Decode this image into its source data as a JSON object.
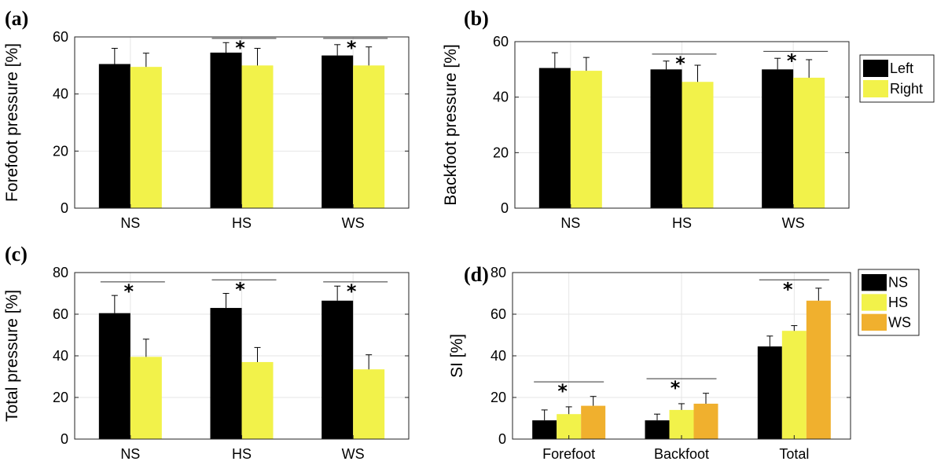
{
  "colors": {
    "black": "#000000",
    "yellow": "#f2f24a",
    "orange": "#f0b02e",
    "grid": "#e6e6e6",
    "axis": "#222222"
  },
  "chart_data": [
    {
      "id": "a",
      "panel_label": "(a)",
      "type": "bar",
      "ylabel": "Forefoot pressure [%]",
      "ylim": [
        0,
        60
      ],
      "yticks": [
        0,
        20,
        40,
        60
      ],
      "categories": [
        "NS",
        "HS",
        "WS"
      ],
      "series": [
        {
          "name": "Left",
          "color": "black",
          "values": [
            50.5,
            54.5,
            53.5
          ],
          "errors": [
            5.5,
            3.5,
            3.8
          ]
        },
        {
          "name": "Right",
          "color": "yellow",
          "values": [
            49.5,
            50.0,
            50.0
          ],
          "errors": [
            4.8,
            6.0,
            6.5
          ]
        }
      ],
      "significance": [
        {
          "category": "HS",
          "label": "*",
          "level": 59.5
        },
        {
          "category": "WS",
          "label": "*",
          "level": 59.5
        }
      ],
      "grid": true,
      "legend": null
    },
    {
      "id": "b",
      "panel_label": "(b)",
      "type": "bar",
      "ylabel": "Backfoot  pressure [%]",
      "ylim": [
        0,
        60
      ],
      "yticks": [
        0,
        20,
        40,
        60
      ],
      "categories": [
        "NS",
        "HS",
        "WS"
      ],
      "series": [
        {
          "name": "Left",
          "color": "black",
          "values": [
            50.5,
            50.0,
            50.0
          ],
          "errors": [
            5.5,
            3.0,
            4.0
          ]
        },
        {
          "name": "Right",
          "color": "yellow",
          "values": [
            49.5,
            45.5,
            47.0
          ],
          "errors": [
            4.8,
            6.0,
            6.5
          ]
        }
      ],
      "significance": [
        {
          "category": "HS",
          "label": "*",
          "level": 55.5
        },
        {
          "category": "WS",
          "label": "*",
          "level": 56.5
        }
      ],
      "grid": true,
      "legend": {
        "position": "outside-right",
        "entries": [
          "Left",
          "Right"
        ]
      }
    },
    {
      "id": "c",
      "panel_label": "(c)",
      "type": "bar",
      "ylabel": "Total pressure [%]",
      "ylim": [
        0,
        80
      ],
      "yticks": [
        0,
        20,
        40,
        60,
        80
      ],
      "categories": [
        "NS",
        "HS",
        "WS"
      ],
      "series": [
        {
          "name": "Left",
          "color": "black",
          "values": [
            60.5,
            63.0,
            66.5
          ],
          "errors": [
            8.5,
            7.0,
            7.0
          ]
        },
        {
          "name": "Right",
          "color": "yellow",
          "values": [
            39.5,
            37.0,
            33.5
          ],
          "errors": [
            8.5,
            7.0,
            7.0
          ]
        }
      ],
      "significance": [
        {
          "category": "NS",
          "label": "*",
          "level": 75.5
        },
        {
          "category": "HS",
          "label": "*",
          "level": 76.5
        },
        {
          "category": "WS",
          "label": "*",
          "level": 75.5
        }
      ],
      "grid": true,
      "legend": null
    },
    {
      "id": "d",
      "panel_label": "(d)",
      "type": "bar",
      "ylabel": "SI [%]",
      "ylim": [
        0,
        80
      ],
      "yticks": [
        0,
        20,
        40,
        60,
        80
      ],
      "categories": [
        "Forefoot",
        "Backfoot",
        "Total"
      ],
      "series": [
        {
          "name": "NS",
          "color": "black",
          "values": [
            9.0,
            9.0,
            44.5
          ],
          "errors": [
            5.0,
            3.0,
            5.0
          ]
        },
        {
          "name": "HS",
          "color": "yellow",
          "values": [
            12.0,
            14.0,
            52.0
          ],
          "errors": [
            3.5,
            3.0,
            2.5
          ]
        },
        {
          "name": "WS",
          "color": "orange",
          "values": [
            16.0,
            17.0,
            66.5
          ],
          "errors": [
            4.5,
            5.0,
            6.0
          ]
        }
      ],
      "significance": [
        {
          "category": "Forefoot",
          "label": "*",
          "level": 27.5
        },
        {
          "category": "Backfoot",
          "label": "*",
          "level": 29.0
        },
        {
          "category": "Total",
          "label": "*",
          "level": 76.5
        }
      ],
      "grid": true,
      "legend": {
        "position": "outside-right",
        "entries": [
          "NS",
          "HS",
          "WS"
        ]
      }
    }
  ]
}
